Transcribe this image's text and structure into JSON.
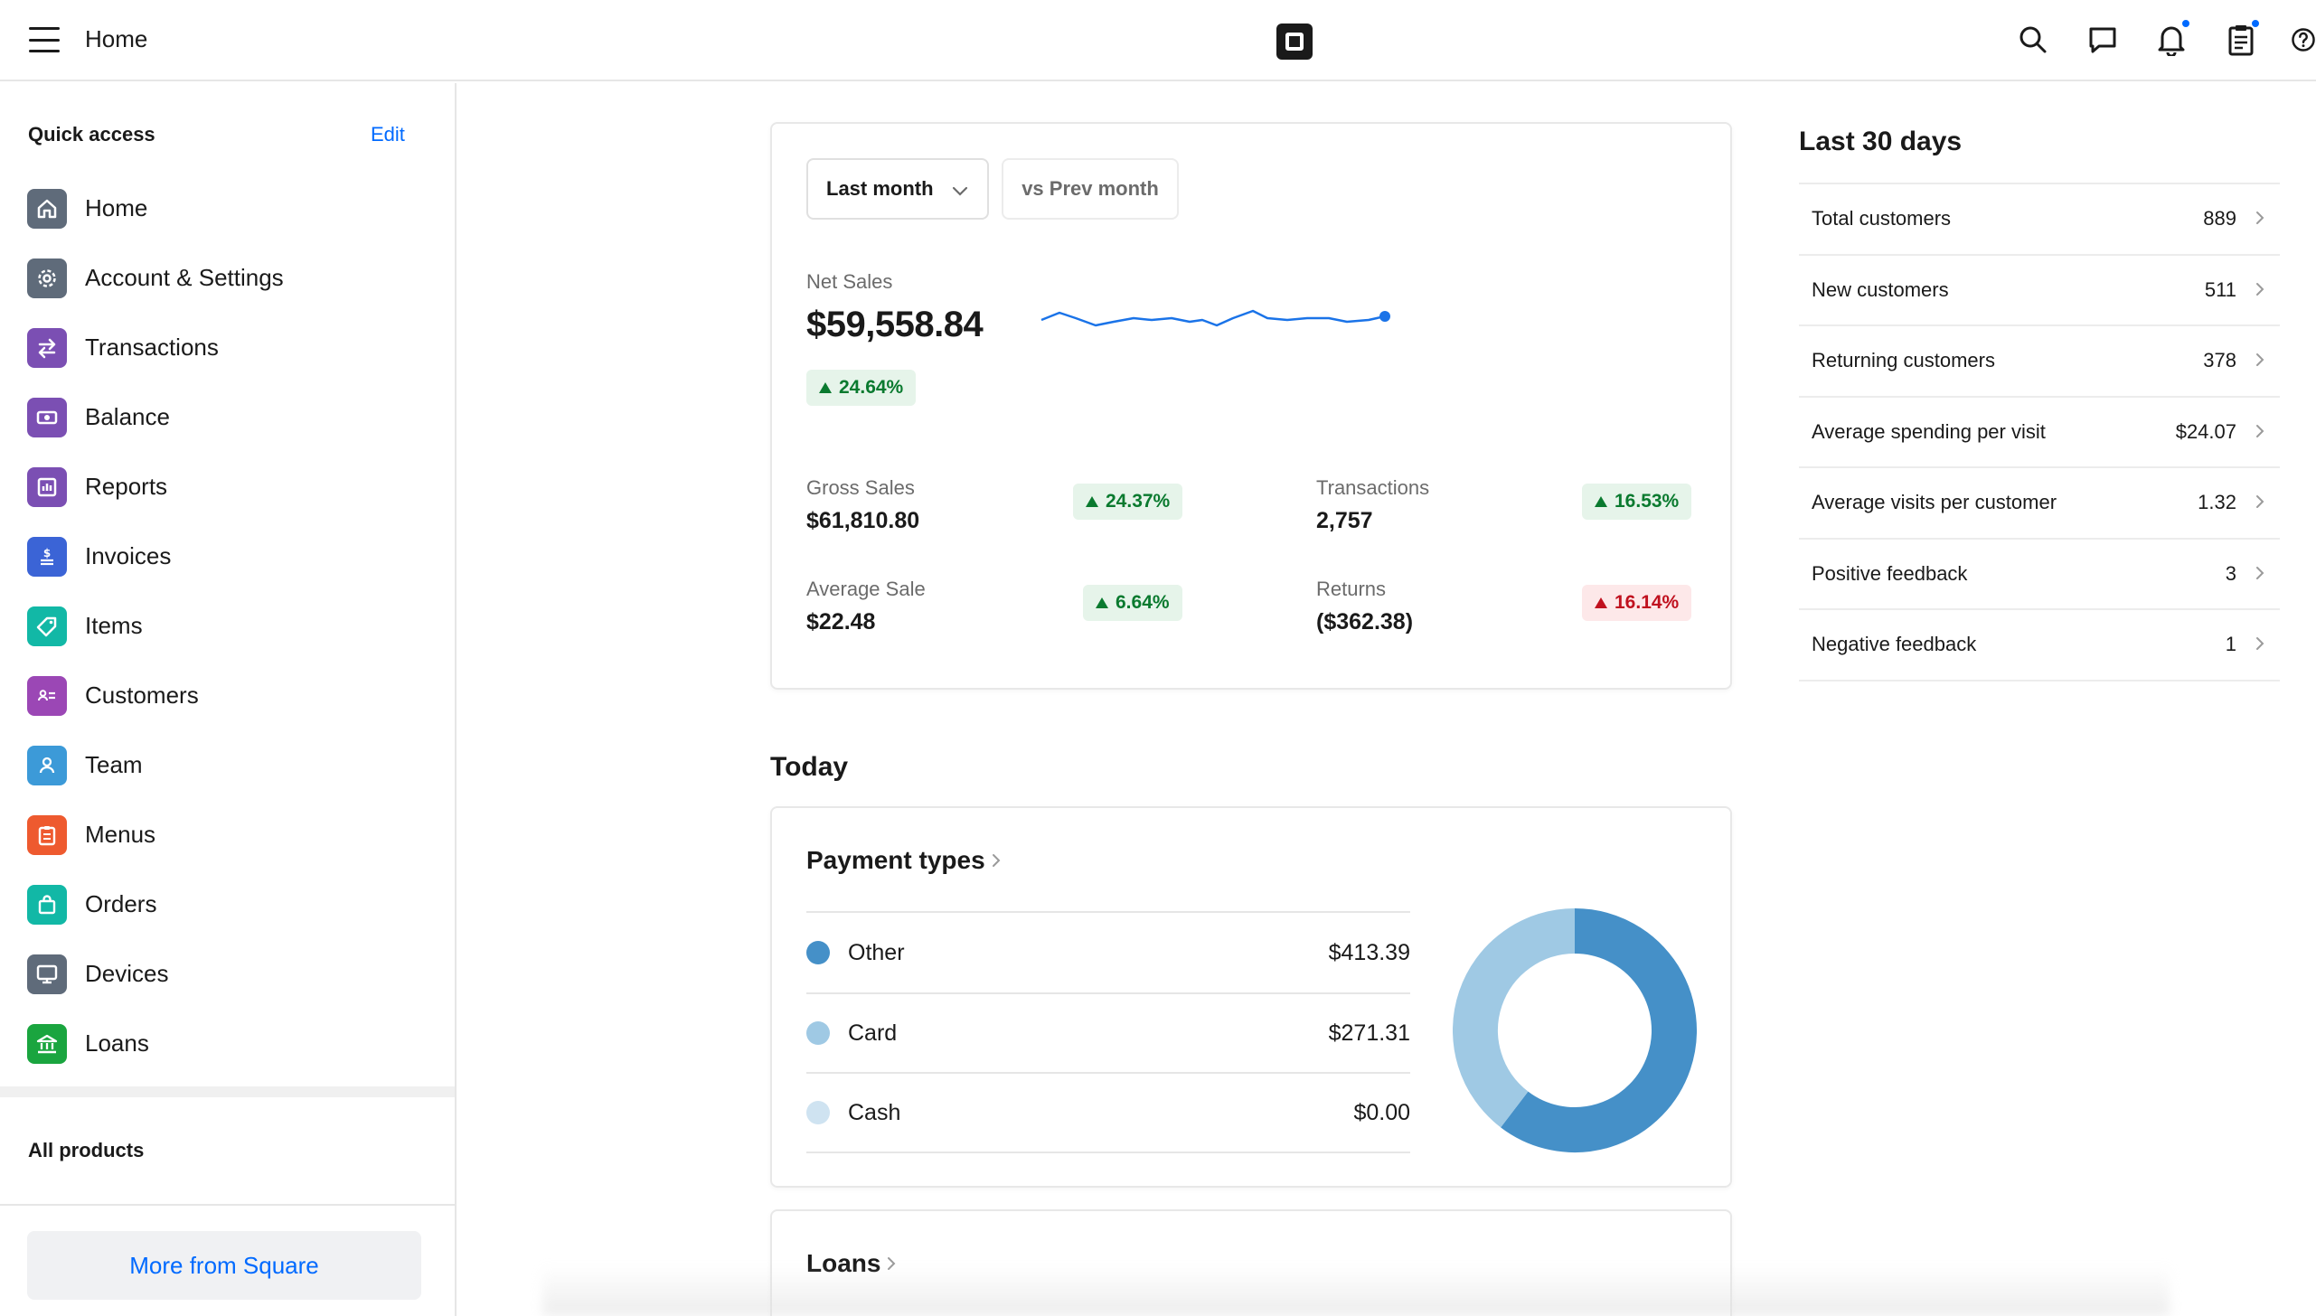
{
  "topbar": {
    "title": "Home",
    "icons": [
      "menu-icon",
      "square-logo",
      "search-icon",
      "chat-icon",
      "bell-icon",
      "clipboard-icon",
      "help-icon"
    ]
  },
  "sidebar": {
    "quick_access_title": "Quick access",
    "edit_label": "Edit",
    "items": [
      {
        "label": "Home",
        "icon": "home-icon",
        "color": "#5f6b7a"
      },
      {
        "label": "Account & Settings",
        "icon": "gear-icon",
        "color": "#5f6b7a"
      },
      {
        "label": "Transactions",
        "icon": "arrows-icon",
        "color": "#7b4fb3"
      },
      {
        "label": "Balance",
        "icon": "cash-icon",
        "color": "#7b4fb3"
      },
      {
        "label": "Reports",
        "icon": "bar-chart-icon",
        "color": "#7b4fb3"
      },
      {
        "label": "Invoices",
        "icon": "invoice-icon",
        "color": "#3b64d6"
      },
      {
        "label": "Items",
        "icon": "tag-icon",
        "color": "#12b8a6"
      },
      {
        "label": "Customers",
        "icon": "contact-card-icon",
        "color": "#9b47b5"
      },
      {
        "label": "Team",
        "icon": "person-icon",
        "color": "#3c9ad8"
      },
      {
        "label": "Menus",
        "icon": "menu-board-icon",
        "color": "#ee5a2f"
      },
      {
        "label": "Orders",
        "icon": "shopping-bag-icon",
        "color": "#12b8a6"
      },
      {
        "label": "Devices",
        "icon": "monitor-icon",
        "color": "#5f6b7a"
      },
      {
        "label": "Loans",
        "icon": "bank-icon",
        "color": "#1aa53f"
      }
    ],
    "all_products_label": "All products",
    "more_button_label": "More from Square"
  },
  "sales": {
    "period_label": "Last month",
    "compare_label": "vs Prev month",
    "net_sales_label": "Net Sales",
    "net_sales_value": "$59,558.84",
    "net_sales_change": "24.64%",
    "metrics": [
      {
        "label": "Gross Sales",
        "value": "$61,810.80",
        "change": "24.37%",
        "direction": "up"
      },
      {
        "label": "Transactions",
        "value": "2,757",
        "change": "16.53%",
        "direction": "up"
      },
      {
        "label": "Average Sale",
        "value": "$22.48",
        "change": "6.64%",
        "direction": "up"
      },
      {
        "label": "Returns",
        "value": "($362.38)",
        "change": "16.14%",
        "direction": "down"
      }
    ]
  },
  "today": {
    "title": "Today",
    "payment_types_title": "Payment types",
    "payments": [
      {
        "name": "Other",
        "amount": "$413.39",
        "color": "#4590c8"
      },
      {
        "name": "Card",
        "amount": "$271.31",
        "color": "#9fc9e4"
      },
      {
        "name": "Cash",
        "amount": "$0.00",
        "color": "#cfe3f1"
      }
    ],
    "loans_title": "Loans"
  },
  "chart_data": {
    "type": "pie",
    "categories": [
      "Other",
      "Card",
      "Cash"
    ],
    "values": [
      413.39,
      271.31,
      0.0
    ]
  },
  "last30": {
    "title": "Last 30 days",
    "rows": [
      {
        "label": "Total customers",
        "value": "889"
      },
      {
        "label": "New customers",
        "value": "511"
      },
      {
        "label": "Returning customers",
        "value": "378"
      },
      {
        "label": "Average spending per visit",
        "value": "$24.07"
      },
      {
        "label": "Average visits per customer",
        "value": "1.32"
      },
      {
        "label": "Positive feedback",
        "value": "3"
      },
      {
        "label": "Negative feedback",
        "value": "1"
      }
    ]
  }
}
